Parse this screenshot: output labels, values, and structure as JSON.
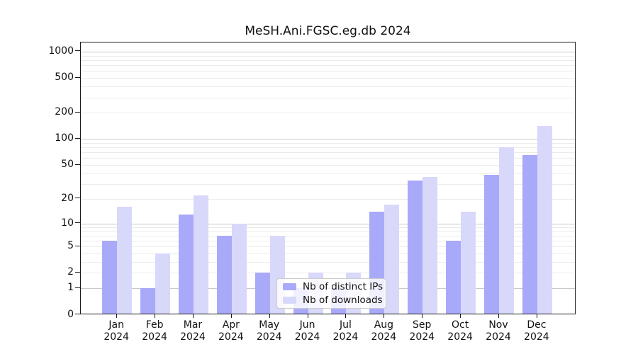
{
  "title": "MeSH.Ani.FGSC.eg.db 2024",
  "chart_data": {
    "type": "bar",
    "title": "MeSH.Ani.FGSC.eg.db 2024",
    "categories": [
      "Jan 2024",
      "Feb 2024",
      "Mar 2024",
      "Apr 2024",
      "May 2024",
      "Jun 2024",
      "Jul 2024",
      "Aug 2024",
      "Sep 2024",
      "Oct 2024",
      "Nov 2024",
      "Dec 2024"
    ],
    "category_line1": [
      "Jan",
      "Feb",
      "Mar",
      "Apr",
      "May",
      "Jun",
      "Jul",
      "Aug",
      "Sep",
      "Oct",
      "Nov",
      "Dec"
    ],
    "category_line2": "2024",
    "series": [
      {
        "name": "Nb of distinct IPs",
        "color": "#a9a9fa",
        "values": [
          6,
          1,
          13,
          7,
          2,
          1,
          1,
          14,
          33,
          6,
          38,
          65
        ]
      },
      {
        "name": "Nb of downloads",
        "color": "#d8d8fa",
        "values": [
          16,
          4,
          22,
          10,
          7,
          2,
          2,
          17,
          36,
          14,
          80,
          140
        ]
      }
    ],
    "yscale": "log1p",
    "yticks": [
      0,
      1,
      2,
      5,
      10,
      20,
      50,
      100,
      200,
      500,
      1000
    ],
    "ytick_labels": [
      "0",
      "1",
      "2",
      "5",
      "10",
      "20",
      "50",
      "100",
      "200",
      "500",
      "1000"
    ],
    "ylim": [
      0,
      1267
    ],
    "grid": "horizontal",
    "legend": {
      "position": "inside-bottom-center",
      "labels": [
        "Nb of distinct IPs",
        "Nb of downloads"
      ]
    },
    "colors": {
      "distinct_ips": "#a9a9fa",
      "downloads": "#d8d8fa",
      "grid_major": "#c9c9c9",
      "grid_minor": "#ececec",
      "axis": "#1a1a1a",
      "legend_border": "#cccccc"
    }
  }
}
